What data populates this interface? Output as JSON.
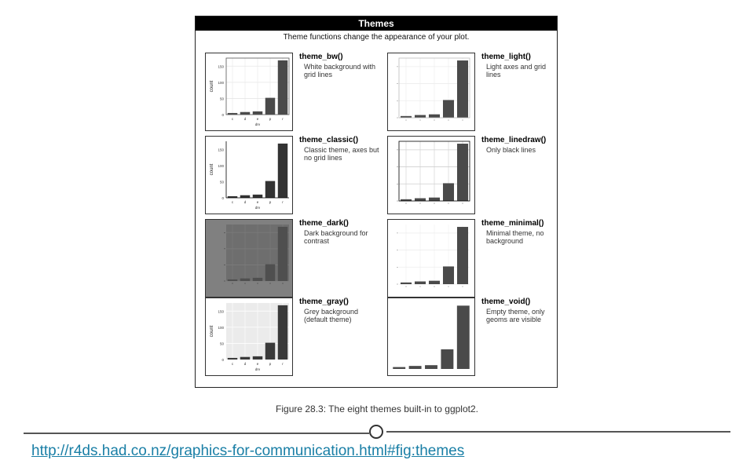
{
  "panel": {
    "title": "Themes",
    "subtitle": "Theme functions change the appearance of your plot."
  },
  "themes": [
    {
      "name": "theme_bw()",
      "description": "White background with grid lines"
    },
    {
      "name": "theme_light()",
      "description": "Light axes and grid lines"
    },
    {
      "name": "theme_classic()",
      "description": "Classic theme, axes but no grid lines"
    },
    {
      "name": "theme_linedraw()",
      "description": "Only black lines"
    },
    {
      "name": "theme_dark()",
      "description": "Dark background for contrast"
    },
    {
      "name": "theme_minimal()",
      "description": "Minimal theme, no background"
    },
    {
      "name": "theme_gray()",
      "description": "Grey background (default theme)"
    },
    {
      "name": "theme_void()",
      "description": "Empty theme, only geoms are visible"
    }
  ],
  "chart_data": {
    "type": "bar",
    "categories": [
      "c",
      "d",
      "e",
      "p",
      "r"
    ],
    "values": [
      5,
      8,
      10,
      52,
      168
    ],
    "ylabel": "count",
    "xlabel": "drv",
    "yticks": [
      0,
      50,
      100,
      150
    ],
    "ylim": [
      0,
      175
    ]
  },
  "caption": "Figure 28.3: The eight themes built-in to ggplot2.",
  "source_link": "http://r4ds.had.co.nz/graphics-for-communication.html#fig:themes",
  "colors": {
    "header_bg": "#000000",
    "bar_fill": "#4a4a4a",
    "dark_panel_bg": "#808080",
    "gray_panel_bg": "#ebebeb",
    "link": "#1a7fa6"
  }
}
